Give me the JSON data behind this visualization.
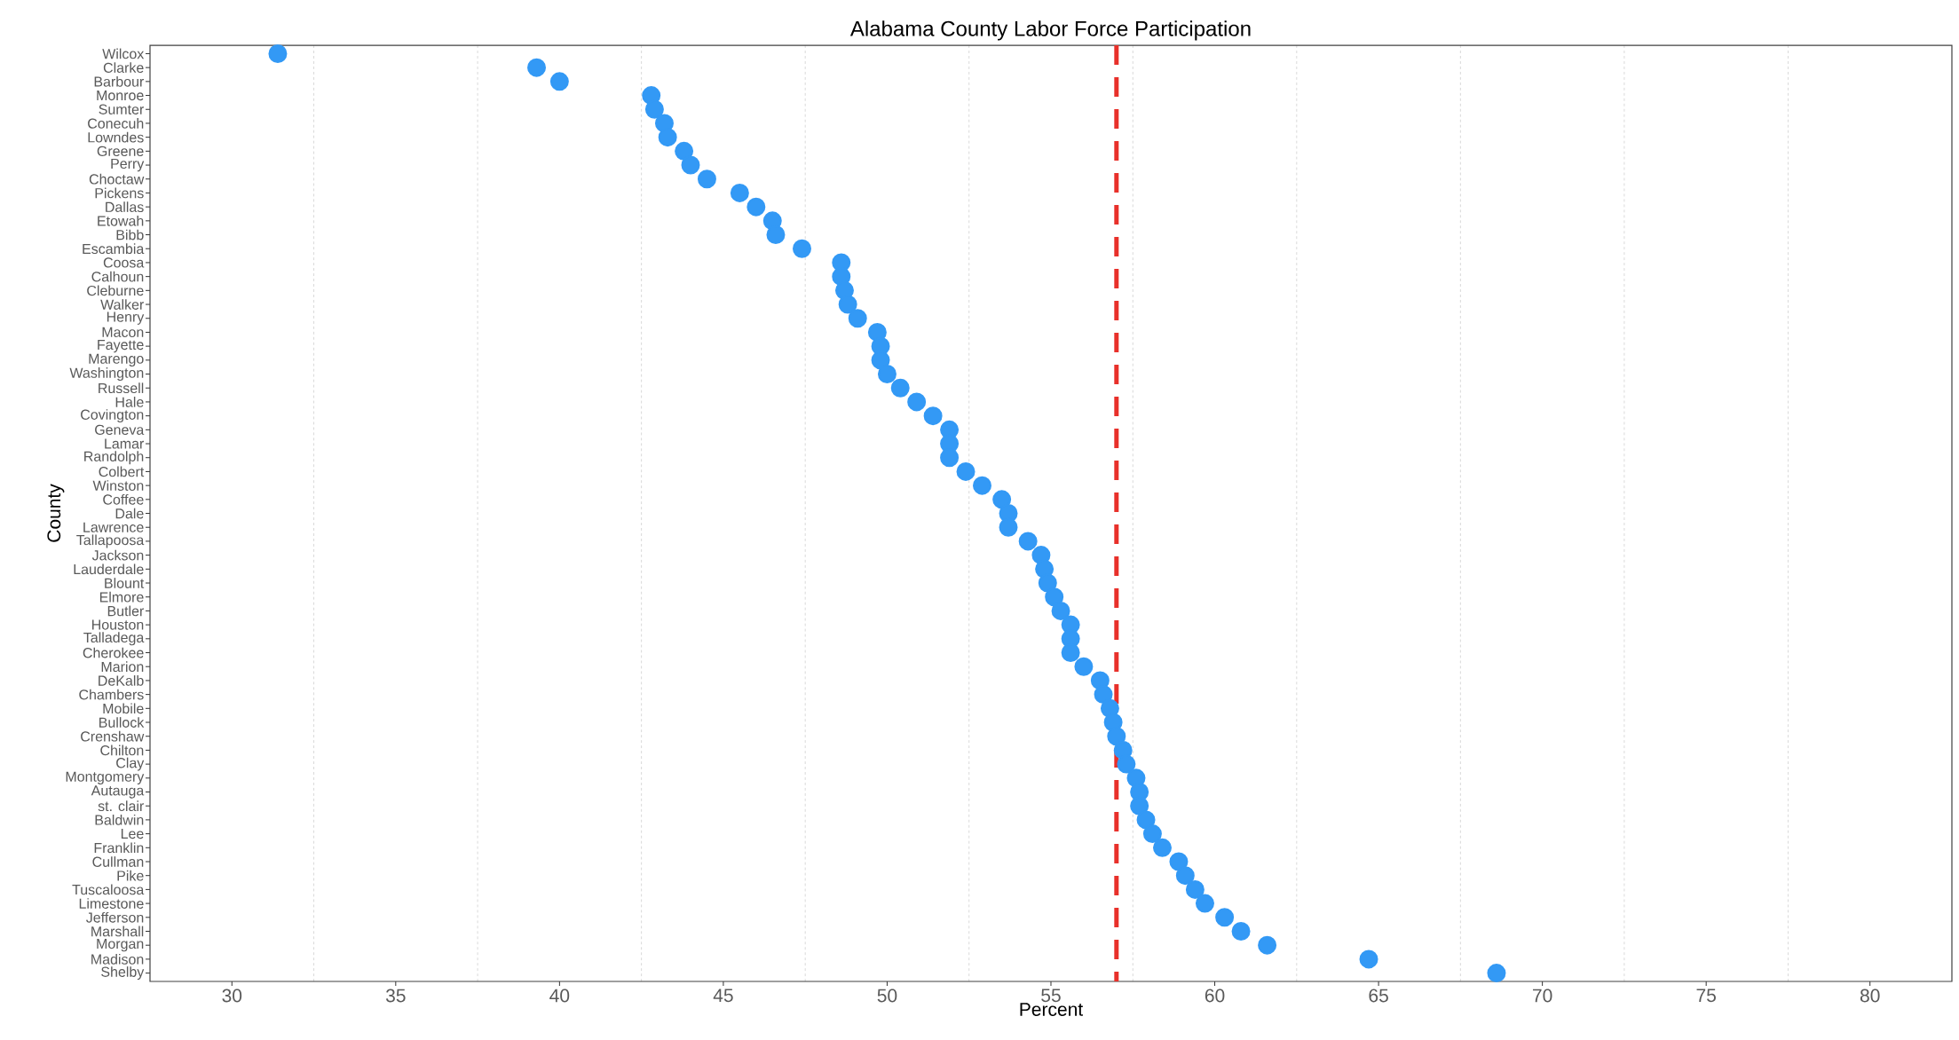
{
  "chart_data": {
    "type": "scatter",
    "title": "Alabama County Labor Force Participation",
    "xlabel": "Percent",
    "ylabel": "County",
    "orientation": "horizontal",
    "categories": [
      "Wilcox",
      "Clarke",
      "Barbour",
      "Monroe",
      "Sumter",
      "Conecuh",
      "Lowndes",
      "Greene",
      "Perry",
      "Choctaw",
      "Pickens",
      "Dallas",
      "Etowah",
      "Bibb",
      "Escambia",
      "Coosa",
      "Calhoun",
      "Cleburne",
      "Walker",
      "Henry",
      "Macon",
      "Fayette",
      "Marengo",
      "Washington",
      "Russell",
      "Hale",
      "Covington",
      "Geneva",
      "Lamar",
      "Randolph",
      "Colbert",
      "Winston",
      "Coffee",
      "Dale",
      "Lawrence",
      "Tallapoosa",
      "Jackson",
      "Lauderdale",
      "Blount",
      "Elmore",
      "Butler",
      "Houston",
      "Talladega",
      "Cherokee",
      "Marion",
      "DeKalb",
      "Chambers",
      "Mobile",
      "Bullock",
      "Crenshaw",
      "Chilton",
      "Clay",
      "Montgomery",
      "Autauga",
      "st. clair",
      "Baldwin",
      "Lee",
      "Franklin",
      "Cullman",
      "Pike",
      "Tuscaloosa",
      "Limestone",
      "Jefferson",
      "Marshall",
      "Morgan",
      "Madison",
      "Shelby"
    ],
    "values": [
      31.4,
      39.3,
      40.0,
      42.8,
      42.9,
      43.2,
      43.3,
      43.8,
      44.0,
      44.5,
      45.5,
      46.0,
      46.5,
      46.6,
      47.4,
      48.6,
      48.6,
      48.7,
      48.8,
      49.1,
      49.7,
      49.8,
      49.8,
      50.0,
      50.4,
      50.9,
      51.4,
      51.9,
      51.9,
      51.9,
      52.4,
      52.9,
      53.5,
      53.7,
      53.7,
      54.3,
      54.7,
      54.8,
      54.9,
      55.1,
      55.3,
      55.6,
      55.6,
      55.6,
      56.0,
      56.5,
      56.6,
      56.8,
      56.9,
      57.0,
      57.2,
      57.3,
      57.6,
      57.7,
      57.7,
      57.9,
      58.1,
      58.4,
      58.9,
      59.1,
      59.4,
      59.7,
      60.3,
      60.8,
      61.6,
      64.7,
      68.6
    ],
    "color": "#3399f5",
    "marker": "circle",
    "xlim": [
      27.5,
      82.5
    ],
    "xticks": [
      30,
      35,
      40,
      45,
      50,
      55,
      60,
      65,
      70,
      75,
      80
    ],
    "grid": "x",
    "ref_lines": [
      {
        "axis": "x",
        "value": 57.0,
        "color": "#e8302a",
        "line_style": "dashed"
      }
    ]
  }
}
